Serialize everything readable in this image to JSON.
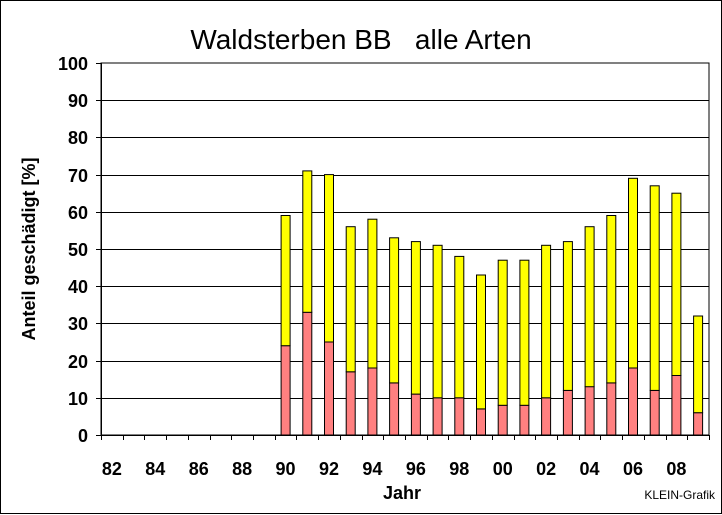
{
  "chart_data": {
    "type": "bar",
    "stacked": true,
    "title": "Waldsterben BB   alle Arten",
    "xlabel": "Jahr",
    "ylabel": "Anteil geschädigt [%]",
    "ylim": [
      0,
      100
    ],
    "yticks": [
      "0",
      "10",
      "20",
      "30",
      "40",
      "50",
      "60",
      "70",
      "80",
      "90",
      "100"
    ],
    "xtick_labels": [
      "82",
      "84",
      "86",
      "88",
      "90",
      "92",
      "94",
      "96",
      "98",
      "00",
      "02",
      "04",
      "06",
      "08"
    ],
    "grid": true,
    "categories": [
      "1982",
      "1983",
      "1984",
      "1985",
      "1986",
      "1987",
      "1988",
      "1989",
      "1990",
      "1991",
      "1992",
      "1993",
      "1994",
      "1995",
      "1996",
      "1997",
      "1998",
      "1999",
      "2000",
      "2001",
      "2002",
      "2003",
      "2004",
      "2005",
      "2006",
      "2007",
      "2008",
      "2009"
    ],
    "series": [
      {
        "color": "#ff8080",
        "values": [
          null,
          null,
          null,
          null,
          null,
          null,
          null,
          null,
          24,
          33,
          25,
          17,
          18,
          14,
          11,
          10,
          10,
          7,
          8,
          8,
          10,
          12,
          13,
          14,
          18,
          12,
          16,
          6
        ]
      },
      {
        "color": "#ffff00",
        "values": [
          null,
          null,
          null,
          null,
          null,
          null,
          null,
          null,
          35,
          38,
          45,
          39,
          40,
          39,
          41,
          41,
          38,
          36,
          39,
          39,
          41,
          40,
          43,
          45,
          51,
          55,
          49,
          26
        ]
      }
    ],
    "credit": "KLEIN-Grafik"
  }
}
